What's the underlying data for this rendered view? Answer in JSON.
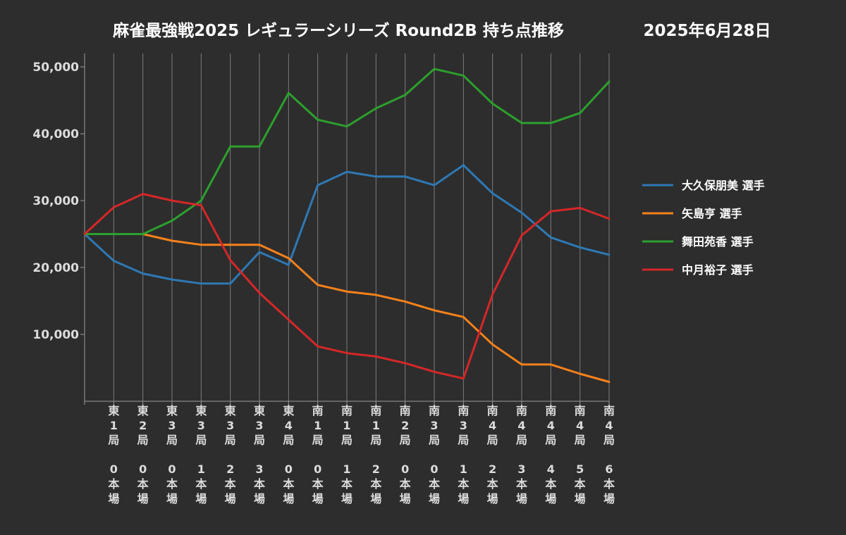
{
  "chart_data": {
    "type": "line",
    "title": "麻雀最強戦2025 レギュラーシリーズ Round2B 持ち点推移",
    "date": "2025年6月28日",
    "xlabel": "",
    "ylabel": "",
    "ylim": [
      0,
      52000
    ],
    "yticks": [
      10000,
      20000,
      30000,
      40000,
      50000
    ],
    "ytick_labels": [
      "10,000",
      "20,000",
      "30,000",
      "40,000",
      "50,000"
    ],
    "grid": "vertical",
    "legend_position": "right",
    "categories": [
      [
        "",
        "",
        ""
      ],
      [
        "東",
        "1",
        "局",
        "",
        "0",
        "本",
        "場"
      ],
      [
        "東",
        "2",
        "局",
        "",
        "0",
        "本",
        "場"
      ],
      [
        "東",
        "3",
        "局",
        "",
        "0",
        "本",
        "場"
      ],
      [
        "東",
        "3",
        "局",
        "",
        "1",
        "本",
        "場"
      ],
      [
        "東",
        "3",
        "局",
        "",
        "2",
        "本",
        "場"
      ],
      [
        "東",
        "3",
        "局",
        "",
        "3",
        "本",
        "場"
      ],
      [
        "東",
        "4",
        "局",
        "",
        "0",
        "本",
        "場"
      ],
      [
        "南",
        "1",
        "局",
        "",
        "0",
        "本",
        "場"
      ],
      [
        "南",
        "1",
        "局",
        "",
        "1",
        "本",
        "場"
      ],
      [
        "南",
        "1",
        "局",
        "",
        "2",
        "本",
        "場"
      ],
      [
        "南",
        "2",
        "局",
        "",
        "0",
        "本",
        "場"
      ],
      [
        "南",
        "3",
        "局",
        "",
        "0",
        "本",
        "場"
      ],
      [
        "南",
        "3",
        "局",
        "",
        "1",
        "本",
        "場"
      ],
      [
        "南",
        "4",
        "局",
        "",
        "2",
        "本",
        "場"
      ],
      [
        "南",
        "4",
        "局",
        "",
        "3",
        "本",
        "場"
      ],
      [
        "南",
        "4",
        "局",
        "",
        "4",
        "本",
        "場"
      ],
      [
        "南",
        "4",
        "局",
        "",
        "5",
        "本",
        "場"
      ],
      [
        "南",
        "4",
        "局",
        "",
        "6",
        "本",
        "場"
      ]
    ],
    "series": [
      {
        "name": "大久保朋美 選手",
        "color": "#2e78b4",
        "values": [
          25000,
          21000,
          19100,
          18200,
          17600,
          17600,
          22300,
          20400,
          32300,
          34300,
          33600,
          33600,
          32300,
          35300,
          31100,
          28200,
          24500,
          23000,
          21900
        ]
      },
      {
        "name": "矢島亨 選手",
        "color": "#f7811b",
        "values": [
          25000,
          25000,
          25000,
          24000,
          23400,
          23400,
          23400,
          21400,
          17400,
          16400,
          15900,
          14900,
          13600,
          12600,
          8500,
          5500,
          5500,
          4100,
          2900
        ]
      },
      {
        "name": "舞田苑香 選手",
        "color": "#2ca02c",
        "values": [
          25000,
          25000,
          25000,
          27000,
          30000,
          38100,
          38100,
          46100,
          42100,
          41100,
          43800,
          45800,
          49700,
          48700,
          44500,
          41600,
          41600,
          43100,
          47800
        ]
      },
      {
        "name": "中月裕子 選手",
        "color": "#d62728",
        "values": [
          25000,
          29000,
          31000,
          30000,
          29300,
          21100,
          16200,
          12200,
          8200,
          7200,
          6700,
          5700,
          4400,
          3400,
          16000,
          24800,
          28400,
          28900,
          27300
        ]
      }
    ]
  }
}
